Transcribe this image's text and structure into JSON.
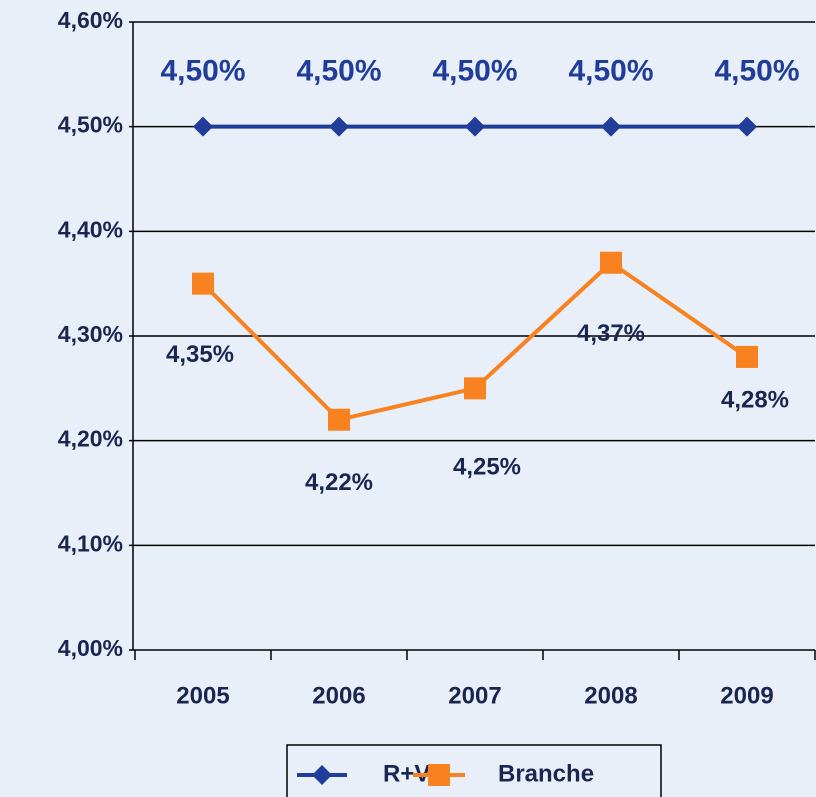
{
  "chart_data": {
    "type": "line",
    "categories": [
      "2005",
      "2006",
      "2007",
      "2008",
      "2009"
    ],
    "series": [
      {
        "name": "R+V",
        "color": "#1f3d99",
        "values": [
          4.5,
          4.5,
          4.5,
          4.5,
          4.5
        ],
        "value_labels": [
          "4,50%",
          "4,50%",
          "4,50%",
          "4,50%",
          "4,50%"
        ]
      },
      {
        "name": "Branche",
        "color": "#f7821f",
        "values": [
          4.35,
          4.22,
          4.25,
          4.37,
          4.28
        ],
        "value_labels": [
          "4,35%",
          "4,22%",
          "4,25%",
          "4,37%",
          "4,28%"
        ]
      }
    ],
    "ylim": [
      4.0,
      4.6
    ],
    "yticks": [
      {
        "value": 4.0,
        "label": "4,00%"
      },
      {
        "value": 4.1,
        "label": "4,10%"
      },
      {
        "value": 4.2,
        "label": "4,20%"
      },
      {
        "value": 4.3,
        "label": "4,30%"
      },
      {
        "value": 4.4,
        "label": "4,40%"
      },
      {
        "value": 4.5,
        "label": "4,50%"
      },
      {
        "value": 4.6,
        "label": "4,60%"
      }
    ],
    "grid": true,
    "legend": "bottom"
  }
}
